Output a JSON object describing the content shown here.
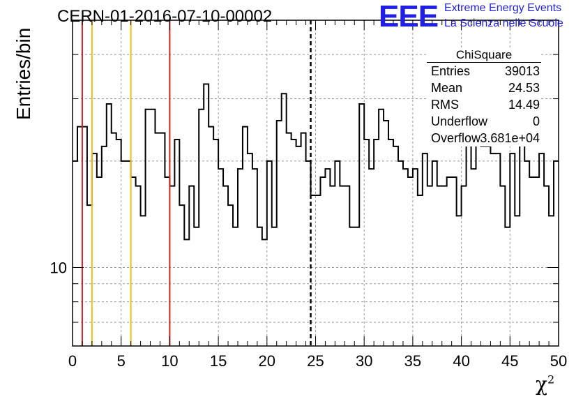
{
  "title": "CERN-01-2016-07-10-00002",
  "logo": {
    "mark": "EEE",
    "line1": "Extreme Energy Events",
    "line2": "La Scienza nelle Scuole",
    "color": "#1f1fe6"
  },
  "stats": {
    "title": "ChiSquare",
    "rows": [
      {
        "label": "Entries",
        "value": "39013"
      },
      {
        "label": "Mean",
        "value": "24.53"
      },
      {
        "label": "RMS",
        "value": "14.49"
      },
      {
        "label": "Underflow",
        "value": "0"
      },
      {
        "label": "Overflow",
        "value": "3.681e+04"
      }
    ]
  },
  "chart_data": {
    "type": "histogram",
    "title": "CERN-01-2016-07-10-00002",
    "xlabel": "χ²",
    "ylabel": "Entries/bin",
    "xlim": [
      0,
      50
    ],
    "ylim": [
      6,
      50
    ],
    "yscale": "log",
    "bin_width": 0.5,
    "x_ticks": [
      "0",
      "5",
      "10",
      "15",
      "20",
      "25",
      "30",
      "35",
      "40",
      "45",
      "50"
    ],
    "y_tick_labels": [
      {
        "value": 10,
        "label": "10"
      }
    ],
    "grid": true,
    "values": [
      20,
      25,
      25,
      15,
      21,
      18,
      22,
      29,
      24,
      23,
      20,
      20,
      18,
      17,
      14,
      28,
      28,
      24,
      24,
      18,
      17,
      23,
      15,
      12,
      17,
      13,
      28,
      33,
      25,
      23,
      19,
      17,
      15,
      13,
      19,
      25,
      21,
      19,
      13,
      12,
      20,
      13,
      26,
      31,
      24,
      23,
      22,
      24,
      20,
      16,
      16,
      18,
      19,
      17,
      20,
      17,
      17,
      13,
      13,
      29,
      23,
      19,
      23,
      28,
      26,
      23,
      22,
      20,
      19,
      18,
      19,
      16,
      21,
      17,
      20,
      17,
      17,
      18,
      18,
      14,
      17,
      32,
      19,
      26,
      22,
      22,
      21,
      21,
      17,
      13,
      21,
      14,
      30,
      20,
      18,
      18,
      21,
      17,
      14,
      20
    ],
    "vertical_lines": [
      {
        "x": 1,
        "color": "#d22020",
        "style": "solid"
      },
      {
        "x": 2,
        "color": "#f2c10f",
        "style": "solid"
      },
      {
        "x": 6,
        "color": "#f2c10f",
        "style": "solid"
      },
      {
        "x": 10,
        "color": "#d22020",
        "style": "solid"
      },
      {
        "x": 24.5,
        "color": "#000000",
        "style": "dashed"
      }
    ],
    "legend": "stats box top-right"
  }
}
